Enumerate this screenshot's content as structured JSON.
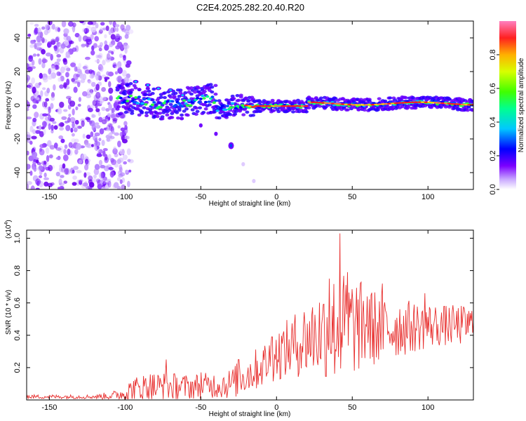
{
  "title": "C2E4.2025.282.20.40.R20",
  "chart_data": [
    {
      "type": "heatmap",
      "name": "spectrogram",
      "xlabel": "Height of straight line (km)",
      "ylabel": "Frequency (Hz)",
      "xlim": [
        -165,
        130
      ],
      "ylim": [
        -50,
        50
      ],
      "xticks": [
        -150,
        -100,
        -50,
        0,
        50,
        100
      ],
      "yticks": [
        -40,
        -20,
        0,
        20,
        40
      ],
      "colorbar": {
        "label": "Normalized spectral amplitude",
        "range": [
          0,
          1
        ],
        "ticks": [
          "0.0",
          "0.2",
          "0.4",
          "0.6",
          "0.8"
        ],
        "ticks_num": [
          0.0,
          0.2,
          0.4,
          0.6,
          0.8
        ]
      },
      "features": [
        {
          "name": "noise-region",
          "x_range": [
            -165,
            -100
          ],
          "y_range": [
            -50,
            50
          ]
        },
        {
          "name": "main-band",
          "x_range": [
            -105,
            130
          ],
          "center_freq": 0,
          "width_hz": 5
        },
        {
          "name": "branch-trail",
          "points": [
            [
              -50,
              -12
            ],
            [
              -40,
              -17
            ],
            [
              -30,
              -24
            ],
            [
              -22,
              -35
            ],
            [
              -15,
              -45
            ]
          ]
        }
      ]
    },
    {
      "type": "line",
      "name": "snr",
      "xlabel": "Height of straight line (km)",
      "ylabel": "SNR (10 * v/v)",
      "exponent_label": "(x10",
      "exponent_sup": "4",
      "exponent_close": ")",
      "xlim": [
        -165,
        130
      ],
      "ylim": [
        0,
        1.05
      ],
      "xticks": [
        -150,
        -100,
        -50,
        0,
        50,
        100
      ],
      "yticks": [
        0.2,
        0.4,
        0.6,
        0.8,
        1.0
      ],
      "ytick_labels": [
        "0.2",
        "0.4",
        "0.6",
        "0.8",
        "1.0"
      ],
      "color": "#e8302f",
      "envelope_x": [
        -165,
        -120,
        -105,
        -95,
        -85,
        -75,
        -60,
        -45,
        -30,
        -25,
        -15,
        -5,
        0,
        10,
        20,
        30,
        40,
        50,
        60,
        70,
        80,
        90,
        100,
        110,
        120,
        130
      ],
      "envelope_mean": [
        0.02,
        0.02,
        0.03,
        0.06,
        0.08,
        0.08,
        0.08,
        0.09,
        0.1,
        0.13,
        0.18,
        0.24,
        0.28,
        0.33,
        0.38,
        0.42,
        0.45,
        0.46,
        0.45,
        0.44,
        0.45,
        0.45,
        0.46,
        0.46,
        0.46,
        0.47
      ],
      "envelope_amp": [
        0.008,
        0.008,
        0.02,
        0.05,
        0.06,
        0.06,
        0.05,
        0.05,
        0.06,
        0.07,
        0.08,
        0.09,
        0.1,
        0.12,
        0.15,
        0.18,
        0.22,
        0.2,
        0.16,
        0.14,
        0.12,
        0.1,
        0.09,
        0.08,
        0.08,
        0.07
      ],
      "peaks": [
        [
          -73,
          0.25
        ],
        [
          -50,
          0.17
        ],
        [
          -25,
          0.25
        ],
        [
          -3,
          0.39
        ],
        [
          42,
          1.03
        ],
        [
          47,
          0.79
        ],
        [
          35,
          0.75
        ],
        [
          60,
          0.64
        ],
        [
          70,
          0.72
        ],
        [
          98,
          0.66
        ]
      ],
      "n_samples": 590
    }
  ]
}
